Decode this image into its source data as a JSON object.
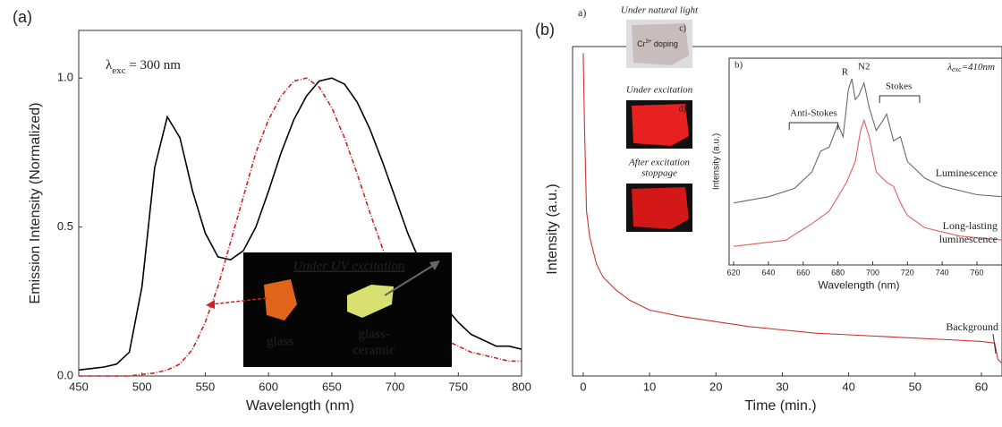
{
  "chart_data": [
    {
      "type": "line",
      "panel_label": "(a)",
      "x": [
        450,
        460,
        470,
        480,
        490,
        500,
        510,
        520,
        530,
        540,
        550,
        560,
        570,
        580,
        590,
        600,
        610,
        620,
        630,
        640,
        650,
        660,
        670,
        680,
        690,
        700,
        710,
        720,
        730,
        740,
        750,
        760,
        770,
        780,
        790,
        800
      ],
      "series": [
        {
          "color": "#000000",
          "dash": false,
          "values": [
            0.02,
            0.025,
            0.03,
            0.04,
            0.08,
            0.3,
            0.7,
            0.87,
            0.8,
            0.62,
            0.48,
            0.4,
            0.39,
            0.42,
            0.5,
            0.62,
            0.75,
            0.86,
            0.94,
            0.99,
            1.0,
            0.98,
            0.92,
            0.83,
            0.72,
            0.6,
            0.48,
            0.38,
            0.3,
            0.23,
            0.18,
            0.14,
            0.12,
            0.1,
            0.1,
            0.09
          ]
        },
        {
          "color": "#cc2222",
          "dash": true,
          "values": [
            0,
            0,
            0,
            0,
            0,
            0.005,
            0.01,
            0.02,
            0.04,
            0.09,
            0.18,
            0.3,
            0.45,
            0.6,
            0.75,
            0.86,
            0.94,
            0.99,
            1.0,
            0.97,
            0.9,
            0.8,
            0.68,
            0.55,
            0.43,
            0.33,
            0.25,
            0.19,
            0.15,
            0.12,
            0.1,
            0.08,
            0.07,
            0.06,
            0.05,
            0.05
          ]
        }
      ],
      "xlabel": "Wavelength (nm)",
      "ylabel": "Emission Intensity (Normalized)",
      "xlim": [
        450,
        800
      ],
      "ylim": [
        0,
        1.16
      ],
      "xticks": [
        450,
        500,
        550,
        600,
        650,
        700,
        750,
        800
      ],
      "yticks": [
        {
          "value": 0,
          "label": "0.0"
        },
        {
          "value": 0.5,
          "label": "0.5"
        },
        {
          "value": 1,
          "label": "1.0"
        }
      ],
      "annotation": {
        "symbol": "λ",
        "sub": "exc",
        "rest": " = 300 nm"
      },
      "inset": {
        "title": "Under UV excitation",
        "glass": "glass",
        "glass_ceramic": [
          "glass-",
          "ceramic"
        ]
      }
    },
    {
      "type": "line",
      "panel_label": "(b)",
      "sub_label": "a)",
      "x": [
        0,
        0.2,
        0.5,
        1,
        2,
        3,
        5,
        7,
        10,
        15,
        20,
        25,
        30,
        35,
        40,
        45,
        50,
        55,
        60,
        62,
        62.5,
        63
      ],
      "series": [
        {
          "color": "#cc3333",
          "dash": false,
          "values": [
            0.98,
            0.75,
            0.5,
            0.42,
            0.34,
            0.3,
            0.26,
            0.23,
            0.2,
            0.18,
            0.165,
            0.15,
            0.14,
            0.13,
            0.125,
            0.12,
            0.115,
            0.11,
            0.105,
            0.1,
            0.05,
            0.04
          ]
        }
      ],
      "xlabel": "Time (min.)",
      "ylabel": "Intensity (a.u.)",
      "xlim": [
        -1.6,
        63.1
      ],
      "ylim": [
        0,
        1
      ],
      "xticks": [
        0,
        10,
        20,
        30,
        40,
        50,
        60
      ],
      "annotation": "Background",
      "photos": [
        {
          "caption": [
            "Under natural light"
          ],
          "tag": "c)",
          "doping": {
            "el": "Cr",
            "sup": "3+",
            "rest": " doping"
          }
        },
        {
          "caption": [
            "Under excitation"
          ],
          "tag": "d)"
        },
        {
          "caption": [
            "After excitation",
            "stoppage"
          ],
          "tag": "e)"
        }
      ]
    },
    {
      "type": "line",
      "sub_label": "b)",
      "series": [
        {
          "name": "Luminescence",
          "color": "#6a6a6a",
          "x": [
            620,
            640,
            655,
            665,
            670,
            675,
            680,
            683,
            686,
            688,
            690,
            692,
            695,
            698,
            702,
            706,
            708,
            712,
            716,
            720,
            730,
            740,
            760,
            775
          ],
          "values": [
            0.3,
            0.33,
            0.37,
            0.45,
            0.55,
            0.57,
            0.68,
            0.62,
            0.85,
            0.9,
            0.8,
            0.82,
            0.88,
            0.76,
            0.65,
            0.7,
            0.73,
            0.6,
            0.62,
            0.5,
            0.42,
            0.38,
            0.34,
            0.33
          ]
        },
        {
          "name": "Long-lasting luminescence",
          "color": "#e06060",
          "x": [
            620,
            650,
            665,
            675,
            680,
            685,
            690,
            693,
            695,
            698,
            702,
            708,
            712,
            716,
            720,
            730,
            750,
            775
          ],
          "values": [
            0.09,
            0.12,
            0.2,
            0.26,
            0.33,
            0.4,
            0.5,
            0.65,
            0.7,
            0.62,
            0.45,
            0.4,
            0.38,
            0.3,
            0.24,
            0.18,
            0.14,
            0.12
          ]
        }
      ],
      "xlabel": "Wavelength (nm)",
      "ylabel": "Intensity (a.u.)",
      "xlim": [
        617.4,
        774.4
      ],
      "ylim": [
        0,
        1
      ],
      "xticks": [
        620,
        640,
        660,
        680,
        700,
        720,
        740,
        760
      ],
      "peaks": [
        "R",
        "N2"
      ],
      "bands": [
        "Anti-Stokes",
        "Stokes"
      ],
      "excitation": {
        "symbol": "λ",
        "sub": "exc",
        "rest": "=410nm"
      }
    }
  ]
}
